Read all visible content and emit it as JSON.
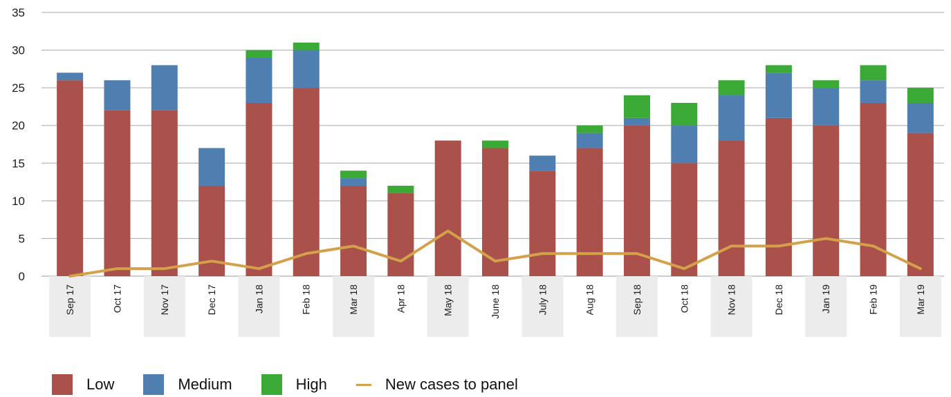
{
  "chart_data": {
    "type": "bar",
    "stacked": true,
    "categories": [
      "Sep 17",
      "Oct 17",
      "Nov 17",
      "Dec 17",
      "Jan 18",
      "Feb 18",
      "Mar 18",
      "Apr 18",
      "May 18",
      "June 18",
      "July 18",
      "Aug 18",
      "Sep 18",
      "Oct 18",
      "Nov 18",
      "Dec 18",
      "Jan 19",
      "Feb 19",
      "Mar 19"
    ],
    "series": [
      {
        "name": "Low",
        "type": "bar",
        "color": "#a9514a",
        "values": [
          26,
          22,
          22,
          12,
          23,
          25,
          12,
          11,
          18,
          17,
          14,
          17,
          20,
          15,
          18,
          21,
          20,
          23,
          19
        ]
      },
      {
        "name": "Medium",
        "type": "bar",
        "color": "#4f7eb0",
        "values": [
          1,
          4,
          6,
          5,
          6,
          5,
          1,
          0,
          0,
          0,
          2,
          2,
          1,
          5,
          6,
          6,
          5,
          3,
          4
        ]
      },
      {
        "name": "High",
        "type": "bar",
        "color": "#3aa935",
        "values": [
          0,
          0,
          0,
          0,
          1,
          1,
          1,
          1,
          0,
          1,
          0,
          1,
          3,
          3,
          2,
          1,
          1,
          2,
          2
        ]
      },
      {
        "name": "New cases to panel",
        "type": "line",
        "color": "#d4a04a",
        "values": [
          0,
          1,
          1,
          2,
          1,
          3,
          4,
          2,
          6,
          2,
          3,
          3,
          3,
          1,
          4,
          4,
          5,
          4,
          1
        ]
      }
    ],
    "ylim": [
      0,
      35
    ],
    "yticks": [
      "0",
      "5",
      "10",
      "15",
      "20",
      "25",
      "30",
      "35"
    ],
    "grid": true,
    "legend_position": "bottom-left",
    "title": "",
    "xlabel": "",
    "ylabel": ""
  }
}
